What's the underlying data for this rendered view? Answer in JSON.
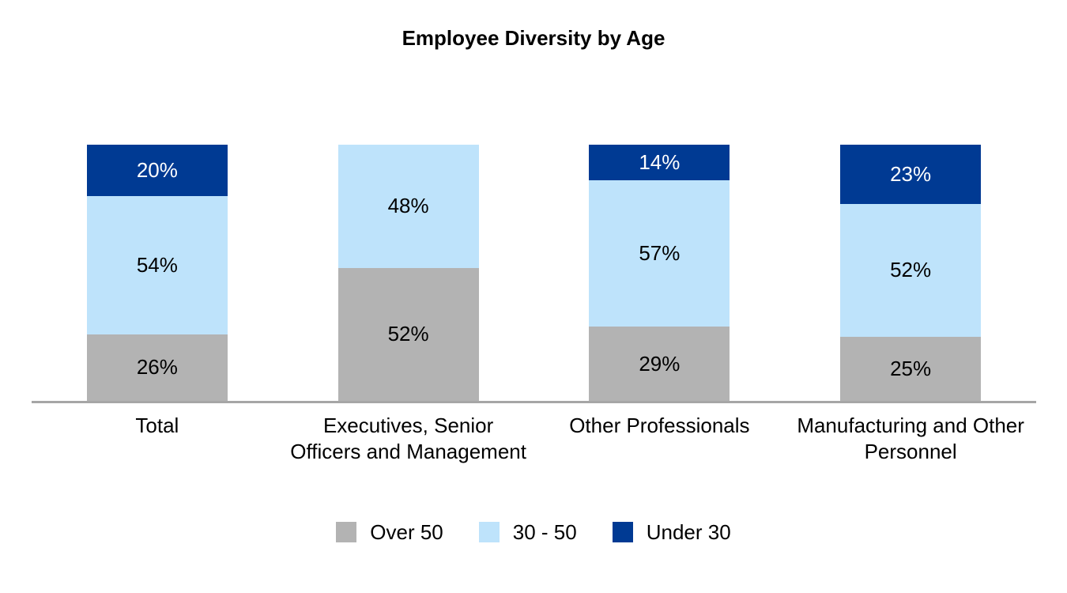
{
  "page": {
    "background": "#FFFFFF",
    "text_color": "#000000"
  },
  "chart_data": {
    "type": "bar",
    "variant": "stacked-column-100",
    "title": "Employee Diversity by Age",
    "categories": [
      "Total",
      "Executives, Senior Officers and Management",
      "Other Professionals",
      "Manufacturing and Other Personnel"
    ],
    "series": [
      {
        "name": "Over 50",
        "color": "#B3B3B3",
        "label_color": "#000000",
        "values": [
          26,
          52,
          29,
          25
        ]
      },
      {
        "name": "30 - 50",
        "color": "#BEE3FB",
        "label_color": "#000000",
        "values": [
          54,
          48,
          57,
          52
        ]
      },
      {
        "name": "Under 30",
        "color": "#003A93",
        "label_color": "#FFFFFF",
        "values": [
          20,
          0,
          14,
          23
        ]
      }
    ],
    "value_suffix": "%",
    "ylim": [
      0,
      100
    ],
    "grid": false,
    "y_axis_visible": false,
    "x_axis_line_color": "#A6A6A6",
    "data_labels": true,
    "legend_position": "bottom"
  }
}
